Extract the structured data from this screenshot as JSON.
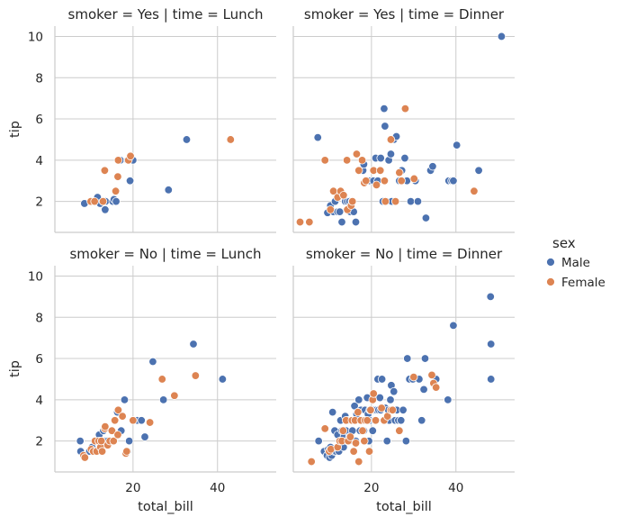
{
  "legend": {
    "title": "sex",
    "entries": [
      {
        "label": "Male",
        "color": "#4c72b0"
      },
      {
        "label": "Female",
        "color": "#dd8452"
      }
    ]
  },
  "chart_data": [
    {
      "type": "scatter",
      "title": "smoker = Yes | time = Lunch",
      "xlabel": "",
      "ylabel": "tip",
      "xlim": [
        1.5,
        53.9
      ],
      "ylim": [
        0.5,
        10.5
      ],
      "xticks": [
        20,
        40
      ],
      "yticks": [
        2,
        4,
        6,
        8,
        10
      ],
      "grid": true,
      "series": [
        {
          "name": "Male",
          "x": [
            8.5,
            10.3,
            11.6,
            12.2,
            13.0,
            13.4,
            13.5,
            15.2,
            15.5,
            16.0,
            17.0,
            18.7,
            19.3,
            20.0,
            28.4,
            32.7
          ],
          "y": [
            1.9,
            2.0,
            2.2,
            1.9,
            2.0,
            1.6,
            2.0,
            2.0,
            2.1,
            2.0,
            4.0,
            4.0,
            3.0,
            4.0,
            2.56,
            5.0
          ]
        },
        {
          "name": "Female",
          "x": [
            10.0,
            10.9,
            12.9,
            13.3,
            15.9,
            16.4,
            16.5,
            18.9,
            19.4,
            43.1
          ],
          "y": [
            2.0,
            2.0,
            2.0,
            3.5,
            2.5,
            3.2,
            4.0,
            4.0,
            4.2,
            5.0
          ]
        }
      ]
    },
    {
      "type": "scatter",
      "title": "smoker = Yes | time = Dinner",
      "xlabel": "",
      "ylabel": "",
      "xlim": [
        1.5,
        53.9
      ],
      "ylim": [
        0.5,
        10.5
      ],
      "xticks": [
        20,
        40
      ],
      "yticks": [
        2,
        4,
        6,
        8,
        10
      ],
      "grid": true,
      "series": [
        {
          "name": "Male",
          "x": [
            7.3,
            9.6,
            10.3,
            11.0,
            11.4,
            12.0,
            12.5,
            13.0,
            13.8,
            14.3,
            14.8,
            15.0,
            15.4,
            15.8,
            16.3,
            17.5,
            18.0,
            18.2,
            19.4,
            20.5,
            21.0,
            21.5,
            22.2,
            22.7,
            23.0,
            23.2,
            23.6,
            24.1,
            24.6,
            24.8,
            25.3,
            25.9,
            26.6,
            27.2,
            27.9,
            28.4,
            29.3,
            30.4,
            31.0,
            32.9,
            34.0,
            34.5,
            38.3,
            39.0,
            39.4,
            40.2,
            45.4,
            50.8
          ],
          "y": [
            5.1,
            1.45,
            1.8,
            1.5,
            2.0,
            1.5,
            1.5,
            1.0,
            2.0,
            2.0,
            2.0,
            1.5,
            2.0,
            1.5,
            1.0,
            3.5,
            3.5,
            3.8,
            3.0,
            3.0,
            4.1,
            3.0,
            4.1,
            2.0,
            6.5,
            5.65,
            2.0,
            4.0,
            4.3,
            2.0,
            5.0,
            5.15,
            3.0,
            3.5,
            4.1,
            3.0,
            2.0,
            3.0,
            2.0,
            1.2,
            3.5,
            3.7,
            3.0,
            3.0,
            3.0,
            4.73,
            3.5,
            10.0
          ]
        },
        {
          "name": "Female",
          "x": [
            3.1,
            5.3,
            9.0,
            10.3,
            11.0,
            12.0,
            12.7,
            13.4,
            14.2,
            14.3,
            15.2,
            15.5,
            16.5,
            17.0,
            17.8,
            18.3,
            18.7,
            20.5,
            21.2,
            22.1,
            23.1,
            23.3,
            24.6,
            25.7,
            26.6,
            27.1,
            28.0,
            30.1,
            44.3
          ],
          "y": [
            1.0,
            1.0,
            4.0,
            1.6,
            2.5,
            2.2,
            2.5,
            2.3,
            4.0,
            1.6,
            1.8,
            2.0,
            4.3,
            3.5,
            4.0,
            2.9,
            3.0,
            3.5,
            2.8,
            3.5,
            3.0,
            2.0,
            5.0,
            2.0,
            3.4,
            3.0,
            6.5,
            3.1,
            2.5
          ]
        }
      ]
    },
    {
      "type": "scatter",
      "title": "smoker = No | time = Lunch",
      "xlabel": "total_bill",
      "ylabel": "tip",
      "xlim": [
        1.5,
        53.9
      ],
      "ylim": [
        0.5,
        10.5
      ],
      "xticks": [
        20,
        40
      ],
      "yticks": [
        2,
        4,
        6,
        8,
        10
      ],
      "grid": true,
      "series": [
        {
          "name": "Male",
          "x": [
            7.5,
            7.6,
            9.7,
            10.3,
            11.3,
            12.0,
            12.3,
            12.7,
            13.0,
            13.4,
            14.0,
            15.0,
            15.5,
            15.8,
            16.3,
            17.2,
            18.0,
            18.7,
            19.1,
            20.3,
            21.0,
            22.0,
            22.8,
            24.7,
            27.2,
            34.3,
            41.2
          ],
          "y": [
            2.0,
            1.5,
            1.5,
            1.7,
            2.0,
            2.3,
            2.0,
            1.5,
            2.5,
            2.0,
            2.0,
            2.5,
            2.0,
            3.0,
            3.4,
            2.5,
            4.0,
            1.5,
            2.0,
            3.0,
            3.0,
            3.0,
            2.2,
            5.85,
            4.0,
            6.7,
            5.0
          ]
        },
        {
          "name": "Female",
          "x": [
            8.3,
            8.6,
            10.1,
            10.6,
            11.0,
            11.4,
            11.9,
            12.3,
            12.5,
            12.7,
            13.3,
            13.4,
            14.0,
            14.5,
            15.0,
            15.4,
            15.7,
            16.4,
            16.5,
            17.5,
            18.3,
            18.5,
            20.0,
            24.0,
            26.9,
            29.8,
            34.8
          ],
          "y": [
            1.3,
            1.2,
            1.6,
            1.5,
            2.0,
            1.5,
            2.0,
            1.7,
            2.0,
            1.5,
            2.6,
            2.7,
            1.8,
            2.0,
            2.5,
            2.0,
            3.0,
            2.3,
            3.5,
            3.2,
            1.4,
            1.5,
            3.0,
            2.9,
            5.0,
            4.2,
            5.17
          ]
        }
      ]
    },
    {
      "type": "scatter",
      "title": "smoker = No | time = Dinner",
      "xlabel": "total_bill",
      "ylabel": "",
      "xlim": [
        1.5,
        53.9
      ],
      "ylim": [
        0.5,
        10.5
      ],
      "xticks": [
        20,
        40
      ],
      "yticks": [
        2,
        4,
        6,
        8,
        10
      ],
      "grid": true,
      "series": [
        {
          "name": "Male",
          "x": [
            7.5,
            8.8,
            9.5,
            9.8,
            10.1,
            10.3,
            10.6,
            10.8,
            11.2,
            11.3,
            11.6,
            12.0,
            12.3,
            12.5,
            12.7,
            13.0,
            13.2,
            13.4,
            13.5,
            13.8,
            14.0,
            14.3,
            14.5,
            14.8,
            15.0,
            15.1,
            15.4,
            15.5,
            15.7,
            16.0,
            16.3,
            16.5,
            17.0,
            17.3,
            17.5,
            17.8,
            18.0,
            18.2,
            18.5,
            18.7,
            19.0,
            19.2,
            19.4,
            19.6,
            20.0,
            20.3,
            20.6,
            20.7,
            21.0,
            21.2,
            21.5,
            21.7,
            22.0,
            22.2,
            22.5,
            23.0,
            23.3,
            23.7,
            24.0,
            24.2,
            24.5,
            24.7,
            25.0,
            25.3,
            25.6,
            26.0,
            26.4,
            27.0,
            27.5,
            28.2,
            28.5,
            29.0,
            29.8,
            31.3,
            31.9,
            32.4,
            32.7,
            35.3,
            38.1,
            39.4,
            48.2,
            48.3,
            48.3,
            48.3
          ],
          "y": [
            2.0,
            1.5,
            1.3,
            1.6,
            1.2,
            1.7,
            1.3,
            3.4,
            1.5,
            2.5,
            1.5,
            2.3,
            1.5,
            2.0,
            3.0,
            2.5,
            2.0,
            1.7,
            2.2,
            3.2,
            2.5,
            2.0,
            3.0,
            2.2,
            3.0,
            2.0,
            3.0,
            2.5,
            2.0,
            3.7,
            2.0,
            3.3,
            4.0,
            2.5,
            3.5,
            3.0,
            3.0,
            2.5,
            3.5,
            3.0,
            4.1,
            3.3,
            2.0,
            3.5,
            3.0,
            2.5,
            3.5,
            3.0,
            3.0,
            3.5,
            5.0,
            3.5,
            4.1,
            3.5,
            5.0,
            3.0,
            3.6,
            2.0,
            3.5,
            3.0,
            4.0,
            4.7,
            3.5,
            4.4,
            3.0,
            3.5,
            3.0,
            3.0,
            3.5,
            2.0,
            6.0,
            5.0,
            5.0,
            5.0,
            3.0,
            4.5,
            6.0,
            5.0,
            4.0,
            7.6,
            9.0,
            6.7,
            5.0,
            5.0
          ]
        },
        {
          "name": "Female",
          "x": [
            5.8,
            9.0,
            10.0,
            10.4,
            12.0,
            12.5,
            13.0,
            13.3,
            14.0,
            14.5,
            15.0,
            15.4,
            15.8,
            16.1,
            16.3,
            16.8,
            17.0,
            17.5,
            17.9,
            18.3,
            18.5,
            19.0,
            19.5,
            19.8,
            20.3,
            20.5,
            21.0,
            22.4,
            23.0,
            23.8,
            24.6,
            25.0,
            26.6,
            30.0,
            34.3,
            34.7,
            35.3
          ],
          "y": [
            1.0,
            2.6,
            1.5,
            1.6,
            1.7,
            2.0,
            2.0,
            2.5,
            3.0,
            2.0,
            2.2,
            3.0,
            1.5,
            3.0,
            1.9,
            3.4,
            1.0,
            3.0,
            2.5,
            2.0,
            3.0,
            3.0,
            1.5,
            3.5,
            4.0,
            4.3,
            3.0,
            3.6,
            3.0,
            3.2,
            3.5,
            3.5,
            2.5,
            5.1,
            5.2,
            4.8,
            4.6
          ]
        }
      ]
    }
  ]
}
